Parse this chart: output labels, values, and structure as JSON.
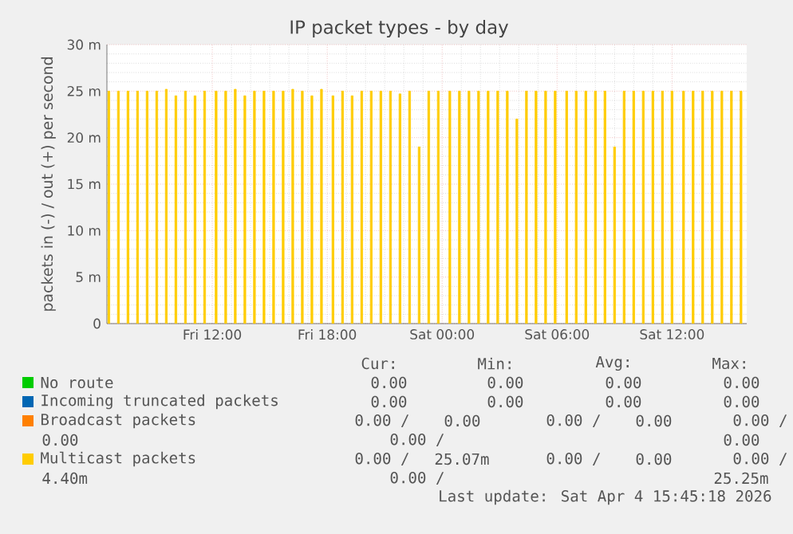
{
  "chart_data": {
    "type": "bar",
    "title": "IP packet types - by day",
    "ylabel": "packets in (-) / out (+) per second",
    "x": [
      "2026-04-03T06:36",
      "2026-04-03T07:06",
      "2026-04-03T07:36",
      "2026-04-03T08:06",
      "2026-04-03T08:36",
      "2026-04-03T09:06",
      "2026-04-03T09:36",
      "2026-04-03T10:06",
      "2026-04-03T10:36",
      "2026-04-03T11:06",
      "2026-04-03T11:36",
      "2026-04-03T12:12",
      "2026-04-03T12:42",
      "2026-04-03T13:12",
      "2026-04-03T13:42",
      "2026-04-03T14:12",
      "2026-04-03T14:42",
      "2026-04-03T15:12",
      "2026-04-03T15:42",
      "2026-04-03T16:12",
      "2026-04-03T16:42",
      "2026-04-03T17:12",
      "2026-04-03T17:42",
      "2026-04-03T18:18",
      "2026-04-03T18:48",
      "2026-04-03T19:18",
      "2026-04-03T19:48",
      "2026-04-03T20:18",
      "2026-04-03T20:48",
      "2026-04-03T21:18",
      "2026-04-03T21:48",
      "2026-04-03T22:18",
      "2026-04-03T22:48",
      "2026-04-03T23:18",
      "2026-04-03T23:48",
      "2026-04-04T00:24",
      "2026-04-04T00:54",
      "2026-04-04T01:24",
      "2026-04-04T01:54",
      "2026-04-04T02:24",
      "2026-04-04T02:54",
      "2026-04-04T03:24",
      "2026-04-04T03:54",
      "2026-04-04T04:24",
      "2026-04-04T04:54",
      "2026-04-04T05:24",
      "2026-04-04T05:54",
      "2026-04-04T06:30",
      "2026-04-04T07:00",
      "2026-04-04T07:30",
      "2026-04-04T08:00",
      "2026-04-04T08:30",
      "2026-04-04T09:00",
      "2026-04-04T09:30",
      "2026-04-04T10:00",
      "2026-04-04T10:30",
      "2026-04-04T11:00",
      "2026-04-04T11:30",
      "2026-04-04T12:00",
      "2026-04-04T12:36",
      "2026-04-04T13:06",
      "2026-04-04T13:36",
      "2026-04-04T14:06",
      "2026-04-04T14:36",
      "2026-04-04T15:06",
      "2026-04-04T15:36"
    ],
    "series": [
      {
        "name": "No route",
        "color": "#00cc00",
        "values": [
          null,
          null,
          null,
          null,
          null,
          null,
          null,
          null,
          null,
          null,
          null,
          null,
          null,
          null,
          null,
          null,
          null,
          null,
          null,
          null,
          null,
          null,
          null,
          null,
          null,
          null,
          null,
          null,
          null,
          null,
          null,
          null,
          null,
          null,
          null,
          null,
          null,
          null,
          null,
          null,
          null,
          null,
          null,
          null,
          null,
          null,
          null,
          null,
          null,
          null,
          null,
          null,
          null,
          null,
          null,
          null,
          null,
          null,
          null,
          null,
          null,
          null,
          null,
          null,
          null,
          null
        ]
      },
      {
        "name": "Incoming truncated packets",
        "color": "#0066b3",
        "values": [
          null,
          null,
          null,
          null,
          null,
          null,
          null,
          null,
          null,
          null,
          null,
          null,
          null,
          null,
          null,
          null,
          null,
          null,
          null,
          null,
          null,
          null,
          null,
          null,
          null,
          null,
          null,
          null,
          null,
          null,
          null,
          null,
          null,
          null,
          null,
          null,
          null,
          null,
          null,
          null,
          null,
          null,
          null,
          null,
          null,
          null,
          null,
          null,
          null,
          null,
          null,
          null,
          null,
          null,
          null,
          null,
          null,
          null,
          null,
          null,
          null,
          null,
          null,
          null,
          null,
          null
        ]
      },
      {
        "name": "Broadcast packets",
        "color": "#ff8000",
        "values": [
          null,
          null,
          null,
          null,
          null,
          null,
          null,
          null,
          null,
          null,
          null,
          null,
          null,
          null,
          null,
          null,
          null,
          null,
          null,
          null,
          null,
          null,
          null,
          null,
          null,
          null,
          null,
          null,
          null,
          null,
          null,
          null,
          null,
          null,
          null,
          null,
          null,
          null,
          null,
          null,
          null,
          null,
          null,
          null,
          null,
          null,
          null,
          null,
          null,
          null,
          null,
          null,
          null,
          null,
          null,
          null,
          null,
          null,
          null,
          null,
          null,
          null,
          null,
          null,
          null,
          null
        ]
      },
      {
        "name": "Multicast packets",
        "color": "#ffcc00",
        "values": [
          25,
          25,
          25,
          25,
          25,
          25,
          25.2,
          24.5,
          25,
          24.5,
          25,
          25,
          25,
          25.2,
          24.5,
          25,
          25,
          25,
          25,
          25.2,
          25,
          24.5,
          25.2,
          24.5,
          25,
          24.5,
          25,
          25,
          25,
          25,
          24.7,
          25,
          19,
          25,
          25,
          25,
          25,
          25,
          25,
          25,
          25,
          25,
          22,
          25,
          25,
          25,
          25,
          25,
          25,
          25,
          25,
          25,
          19,
          25,
          25,
          25,
          25,
          25,
          25,
          25,
          25,
          25,
          25,
          25,
          25,
          25
        ]
      }
    ],
    "xlim": [
      "2026-04-03T06:30",
      "2026-04-04T15:54"
    ],
    "ylim": [
      0,
      30
    ],
    "xticks": [
      {
        "value": "2026-04-03T12:00",
        "label": "Fri 12:00"
      },
      {
        "value": "2026-04-03T18:00",
        "label": "Fri 18:00"
      },
      {
        "value": "2026-04-04T00:00",
        "label": "Sat 00:00"
      },
      {
        "value": "2026-04-04T06:00",
        "label": "Sat 06:00"
      },
      {
        "value": "2026-04-04T12:00",
        "label": "Sat 12:00"
      }
    ],
    "yticks": [
      0,
      {
        "value": 5,
        "label": "5 m"
      },
      {
        "value": 10,
        "label": "10 m"
      },
      {
        "value": 15,
        "label": "15 m"
      },
      {
        "value": 20,
        "label": "20 m"
      },
      {
        "value": 25,
        "label": "25 m"
      },
      {
        "value": 30,
        "label": "30 m"
      }
    ],
    "grid": true,
    "legend": "bottom",
    "annotations": [
      "Cur:",
      "Min:",
      "Avg:",
      "Max:",
      "0.00",
      "0.00",
      "0.00",
      "0.00",
      "0.00",
      "0.00",
      "0.00",
      "0.00",
      "0.00 /",
      "0.00",
      "0.00 /",
      "0.00",
      "0.00 /",
      "0.00",
      "0.00 /",
      "0.00",
      "0.00 /",
      "25.07m",
      "0.00 /",
      "0.00",
      "0.00 /",
      "4.40m",
      "0.00 /",
      "25.25m",
      "Last update: Sat Apr  4 15:45:18 2026"
    ]
  }
}
